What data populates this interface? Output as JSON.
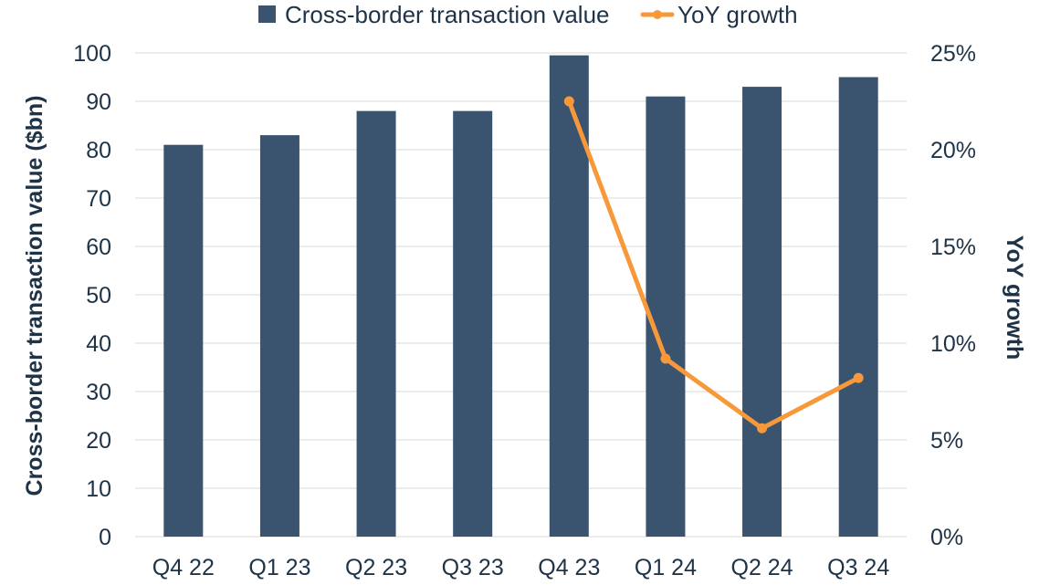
{
  "chart_data": {
    "type": "bar",
    "categories": [
      "Q4 22",
      "Q1 23",
      "Q2 23",
      "Q3 23",
      "Q4 23",
      "Q1 24",
      "Q2 24",
      "Q3 24"
    ],
    "series": [
      {
        "name": "Cross-border transaction value",
        "type": "bar",
        "axis": "left",
        "color": "#3a5470",
        "values": [
          81,
          83,
          88,
          88,
          99.5,
          91,
          93,
          95
        ]
      },
      {
        "name": "YoY growth",
        "type": "line",
        "axis": "right",
        "color": "#f7993a",
        "values": [
          null,
          null,
          null,
          null,
          0.225,
          0.092,
          0.056,
          0.082
        ]
      }
    ],
    "ylabel": "Cross-border transaction value ($bn)",
    "y2label": "YoY growth",
    "ylim": [
      0,
      100
    ],
    "y2lim": [
      0,
      0.25
    ],
    "yticks": [
      "0",
      "10",
      "20",
      "30",
      "40",
      "50",
      "60",
      "70",
      "80",
      "90",
      "100"
    ],
    "y2ticks": [
      "0%",
      "5%",
      "10%",
      "15%",
      "20%",
      "25%"
    ],
    "grid": true,
    "legend": "top"
  }
}
